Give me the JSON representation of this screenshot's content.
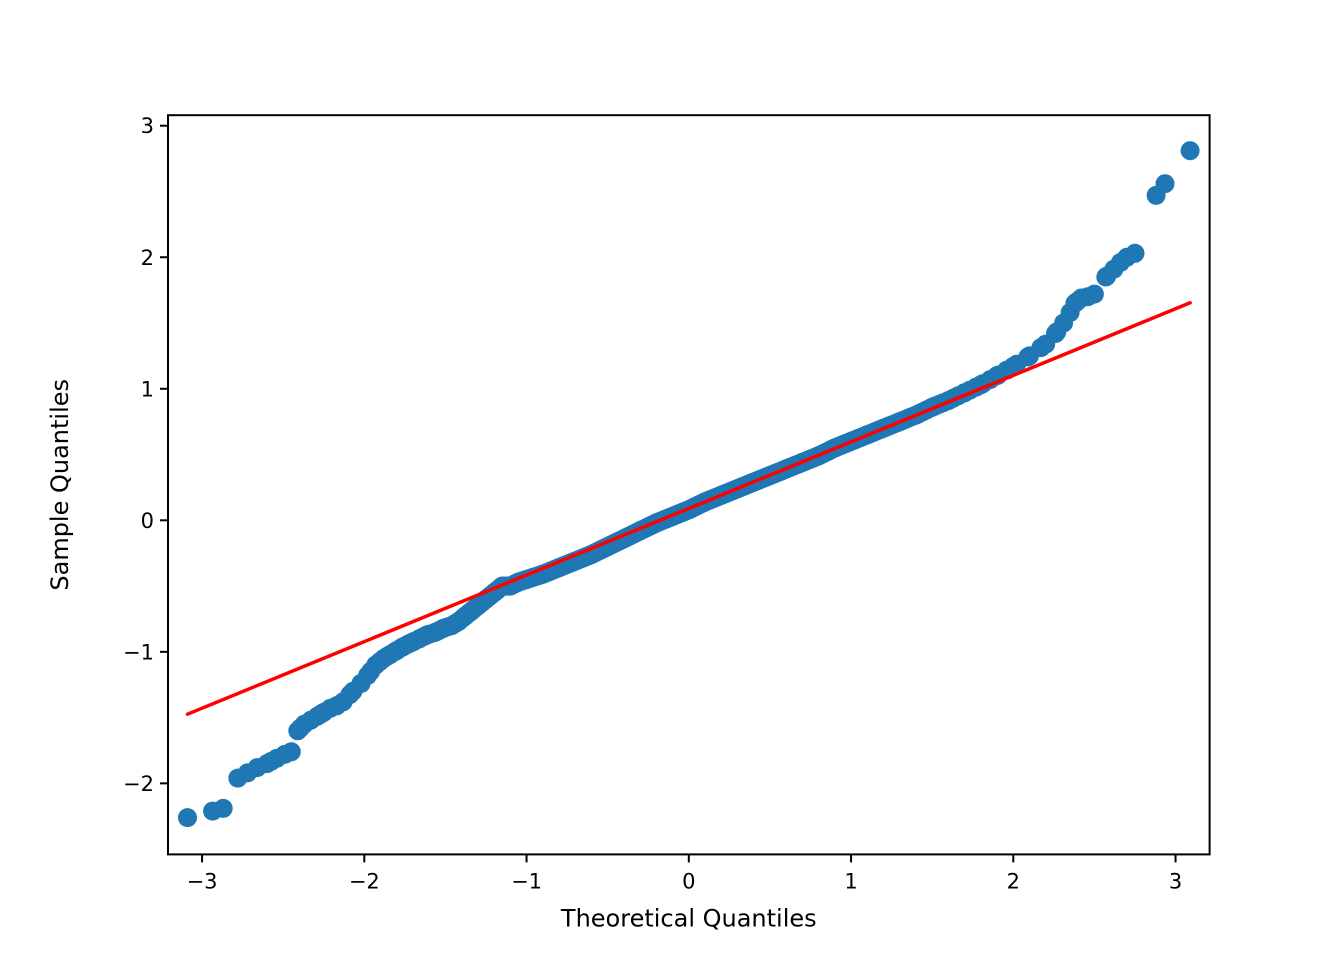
{
  "figure": {
    "background": "#ffffff",
    "title": ""
  },
  "chart_data": {
    "type": "scatter",
    "subtype": "qq-plot",
    "title": "",
    "xlabel": "Theoretical Quantiles",
    "ylabel": "Sample Quantiles",
    "xlim": [
      -3.21,
      3.21
    ],
    "ylim": [
      -2.54,
      3.08
    ],
    "grid": false,
    "legend": null,
    "xticks": [
      -3,
      -2,
      -1,
      0,
      1,
      2,
      3
    ],
    "xtick_labels": [
      "−3",
      "−2",
      "−1",
      "0",
      "1",
      "2",
      "3"
    ],
    "yticks": [
      -2,
      -1,
      0,
      1,
      2,
      3
    ],
    "ytick_labels": [
      "−2",
      "−1",
      "0",
      "1",
      "2",
      "3"
    ],
    "marker_color": "#1f77b4",
    "axis_color": "#000000",
    "reference_line": {
      "color": "#ff0000",
      "x": [
        -3.09,
        3.09
      ],
      "y": [
        -1.474,
        1.654
      ],
      "slope": 0.506,
      "intercept": 0.089
    },
    "fill_n": 300,
    "qq_curve_points": [
      [
        -3.09,
        -2.26
      ],
      [
        -2.87,
        -2.19
      ],
      [
        -2.78,
        -1.96
      ],
      [
        -2.72,
        -1.92
      ],
      [
        -2.66,
        -1.88
      ],
      [
        -2.6,
        -1.85
      ],
      [
        -2.54,
        -1.81
      ],
      [
        -2.49,
        -1.78
      ],
      [
        -2.45,
        -1.76
      ],
      [
        -2.41,
        -1.6
      ],
      [
        -2.37,
        -1.55
      ],
      [
        -2.33,
        -1.52
      ],
      [
        -2.29,
        -1.49
      ],
      [
        -2.25,
        -1.46
      ],
      [
        -2.21,
        -1.43
      ],
      [
        -2.17,
        -1.41
      ],
      [
        -2.13,
        -1.38
      ],
      [
        -2.07,
        -1.3
      ],
      [
        -2.02,
        -1.24
      ],
      [
        -1.98,
        -1.18
      ],
      [
        -1.93,
        -1.1
      ],
      [
        -1.88,
        -1.05
      ],
      [
        -1.84,
        -1.02
      ],
      [
        -1.8,
        -0.99
      ],
      [
        -1.76,
        -0.96
      ],
      [
        -1.71,
        -0.93
      ],
      [
        -1.66,
        -0.9
      ],
      [
        -1.61,
        -0.87
      ],
      [
        -1.56,
        -0.85
      ],
      [
        -1.51,
        -0.82
      ],
      [
        -1.46,
        -0.8
      ],
      [
        -1.42,
        -0.77
      ],
      [
        -1.38,
        -0.73
      ],
      [
        -1.34,
        -0.69
      ],
      [
        -1.3,
        -0.65
      ],
      [
        -1.25,
        -0.6
      ],
      [
        -1.2,
        -0.55
      ],
      [
        -1.15,
        -0.5
      ],
      [
        -1.1,
        -0.5
      ],
      [
        -1.05,
        -0.47
      ],
      [
        -1.0,
        -0.45
      ],
      [
        -0.9,
        -0.41
      ],
      [
        -0.8,
        -0.36
      ],
      [
        -0.7,
        -0.31
      ],
      [
        -0.6,
        -0.26
      ],
      [
        -0.5,
        -0.2
      ],
      [
        -0.4,
        -0.14
      ],
      [
        -0.3,
        -0.08
      ],
      [
        -0.2,
        -0.02
      ],
      [
        -0.1,
        0.03
      ],
      [
        0.0,
        0.08
      ],
      [
        0.1,
        0.14
      ],
      [
        0.2,
        0.19
      ],
      [
        0.3,
        0.24
      ],
      [
        0.4,
        0.29
      ],
      [
        0.5,
        0.34
      ],
      [
        0.6,
        0.39
      ],
      [
        0.7,
        0.44
      ],
      [
        0.8,
        0.49
      ],
      [
        0.9,
        0.55
      ],
      [
        1.0,
        0.6
      ],
      [
        1.1,
        0.65
      ],
      [
        1.2,
        0.7
      ],
      [
        1.3,
        0.75
      ],
      [
        1.4,
        0.8
      ],
      [
        1.5,
        0.86
      ],
      [
        1.6,
        0.91
      ],
      [
        1.7,
        0.97
      ],
      [
        1.8,
        1.03
      ],
      [
        1.9,
        1.1
      ],
      [
        2.0,
        1.17
      ],
      [
        2.1,
        1.25
      ],
      [
        2.2,
        1.34
      ],
      [
        2.26,
        1.42
      ],
      [
        2.31,
        1.5
      ],
      [
        2.35,
        1.58
      ],
      [
        2.38,
        1.65
      ],
      [
        2.42,
        1.69
      ],
      [
        2.46,
        1.7
      ],
      [
        2.5,
        1.72
      ],
      [
        2.57,
        1.85
      ],
      [
        2.62,
        1.91
      ],
      [
        2.66,
        1.96
      ],
      [
        2.7,
        2.0
      ],
      [
        2.75,
        2.03
      ],
      [
        2.88,
        2.47
      ],
      [
        3.09,
        2.81
      ]
    ]
  }
}
